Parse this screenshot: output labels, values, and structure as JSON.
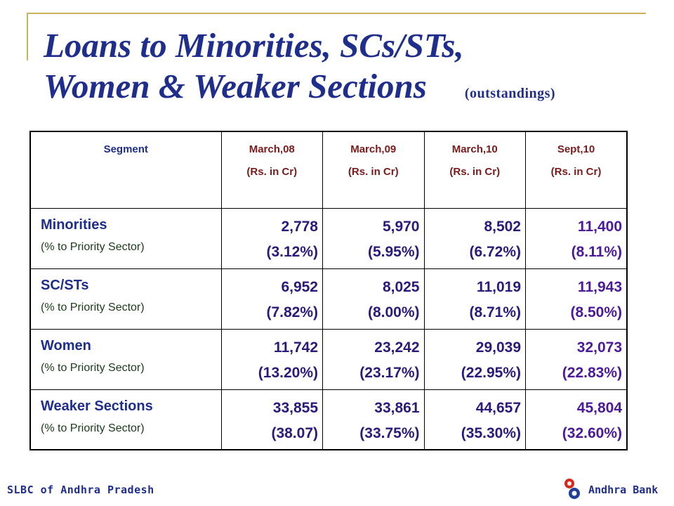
{
  "title": {
    "line1": "Loans to Minorities, SCs/STs,",
    "line2": "Women & Weaker Sections",
    "subtitle": "(outstandings)"
  },
  "table": {
    "header": {
      "segment": "Segment",
      "periods": [
        {
          "label": "March,08",
          "unit": "(Rs. in Cr)"
        },
        {
          "label": "March,09",
          "unit": "(Rs. in Cr)"
        },
        {
          "label": "March,10",
          "unit": "(Rs. in Cr)"
        },
        {
          "label": "Sept,10",
          "unit": "(Rs. in Cr)"
        }
      ]
    },
    "rows": [
      {
        "name": "Minorities",
        "sub": "(% to Priority Sector)",
        "cells": [
          {
            "value": "2,778",
            "pct": "(3.12%)"
          },
          {
            "value": "5,970",
            "pct": "(5.95%)"
          },
          {
            "value": "8,502",
            "pct": "(6.72%)"
          },
          {
            "value": "11,400",
            "pct": "(8.11%)"
          }
        ]
      },
      {
        "name": "SC/STs",
        "sub": "(% to Priority Sector)",
        "cells": [
          {
            "value": "6,952",
            "pct": "(7.82%)"
          },
          {
            "value": "8,025",
            "pct": "(8.00%)"
          },
          {
            "value": "11,019",
            "pct": "(8.71%)"
          },
          {
            "value": "11,943",
            "pct": "(8.50%)"
          }
        ]
      },
      {
        "name": "Women",
        "sub": "(% to Priority Sector)",
        "cells": [
          {
            "value": "11,742",
            "pct": "(13.20%)"
          },
          {
            "value": "23,242",
            "pct": "(23.17%)"
          },
          {
            "value": "29,039",
            "pct": "(22.95%)"
          },
          {
            "value": "32,073",
            "pct": "(22.83%)"
          }
        ]
      },
      {
        "name": "Weaker Sections",
        "sub": "(% to Priority Sector)",
        "cells": [
          {
            "value": "33,855",
            "pct": "(38.07)"
          },
          {
            "value": "33,861",
            "pct": "(33.75%)"
          },
          {
            "value": "44,657",
            "pct": "(35.30%)"
          },
          {
            "value": "45,804",
            "pct": "(32.60%)"
          }
        ]
      }
    ]
  },
  "footer": {
    "left": "SLBC of Andhra Pradesh",
    "right": "Andhra Bank",
    "logo_icon": "andhra-bank-logo-icon"
  },
  "colors": {
    "title": "#1f2e8c",
    "frame": "#c9b25a",
    "logo_red": "#d42a1e",
    "logo_blue": "#1f3f9a"
  }
}
